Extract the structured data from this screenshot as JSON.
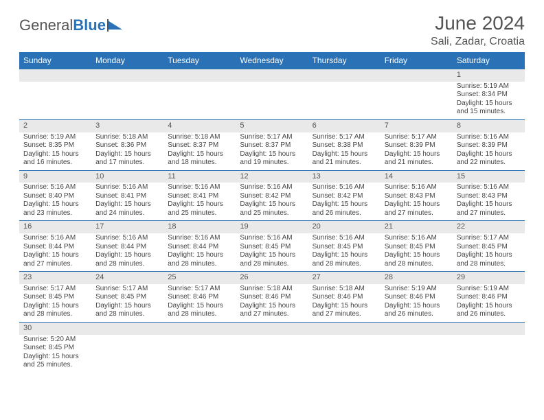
{
  "brand": {
    "part1": "General",
    "part2": "Blue"
  },
  "header": {
    "title": "June 2024",
    "location": "Sali, Zadar, Croatia"
  },
  "colors": {
    "header_bg": "#2a72b5",
    "header_fg": "#ffffff",
    "daynum_bg": "#e9e9e9",
    "rule": "#2a72b5",
    "text": "#444444",
    "title": "#555555"
  },
  "weekdays": [
    "Sunday",
    "Monday",
    "Tuesday",
    "Wednesday",
    "Thursday",
    "Friday",
    "Saturday"
  ],
  "first_weekday_index": 6,
  "days": [
    {
      "n": 1,
      "sunrise": "5:19 AM",
      "sunset": "8:34 PM",
      "daylight": "15 hours and 15 minutes."
    },
    {
      "n": 2,
      "sunrise": "5:19 AM",
      "sunset": "8:35 PM",
      "daylight": "15 hours and 16 minutes."
    },
    {
      "n": 3,
      "sunrise": "5:18 AM",
      "sunset": "8:36 PM",
      "daylight": "15 hours and 17 minutes."
    },
    {
      "n": 4,
      "sunrise": "5:18 AM",
      "sunset": "8:37 PM",
      "daylight": "15 hours and 18 minutes."
    },
    {
      "n": 5,
      "sunrise": "5:17 AM",
      "sunset": "8:37 PM",
      "daylight": "15 hours and 19 minutes."
    },
    {
      "n": 6,
      "sunrise": "5:17 AM",
      "sunset": "8:38 PM",
      "daylight": "15 hours and 21 minutes."
    },
    {
      "n": 7,
      "sunrise": "5:17 AM",
      "sunset": "8:39 PM",
      "daylight": "15 hours and 21 minutes."
    },
    {
      "n": 8,
      "sunrise": "5:16 AM",
      "sunset": "8:39 PM",
      "daylight": "15 hours and 22 minutes."
    },
    {
      "n": 9,
      "sunrise": "5:16 AM",
      "sunset": "8:40 PM",
      "daylight": "15 hours and 23 minutes."
    },
    {
      "n": 10,
      "sunrise": "5:16 AM",
      "sunset": "8:41 PM",
      "daylight": "15 hours and 24 minutes."
    },
    {
      "n": 11,
      "sunrise": "5:16 AM",
      "sunset": "8:41 PM",
      "daylight": "15 hours and 25 minutes."
    },
    {
      "n": 12,
      "sunrise": "5:16 AM",
      "sunset": "8:42 PM",
      "daylight": "15 hours and 25 minutes."
    },
    {
      "n": 13,
      "sunrise": "5:16 AM",
      "sunset": "8:42 PM",
      "daylight": "15 hours and 26 minutes."
    },
    {
      "n": 14,
      "sunrise": "5:16 AM",
      "sunset": "8:43 PM",
      "daylight": "15 hours and 27 minutes."
    },
    {
      "n": 15,
      "sunrise": "5:16 AM",
      "sunset": "8:43 PM",
      "daylight": "15 hours and 27 minutes."
    },
    {
      "n": 16,
      "sunrise": "5:16 AM",
      "sunset": "8:44 PM",
      "daylight": "15 hours and 27 minutes."
    },
    {
      "n": 17,
      "sunrise": "5:16 AM",
      "sunset": "8:44 PM",
      "daylight": "15 hours and 28 minutes."
    },
    {
      "n": 18,
      "sunrise": "5:16 AM",
      "sunset": "8:44 PM",
      "daylight": "15 hours and 28 minutes."
    },
    {
      "n": 19,
      "sunrise": "5:16 AM",
      "sunset": "8:45 PM",
      "daylight": "15 hours and 28 minutes."
    },
    {
      "n": 20,
      "sunrise": "5:16 AM",
      "sunset": "8:45 PM",
      "daylight": "15 hours and 28 minutes."
    },
    {
      "n": 21,
      "sunrise": "5:16 AM",
      "sunset": "8:45 PM",
      "daylight": "15 hours and 28 minutes."
    },
    {
      "n": 22,
      "sunrise": "5:17 AM",
      "sunset": "8:45 PM",
      "daylight": "15 hours and 28 minutes."
    },
    {
      "n": 23,
      "sunrise": "5:17 AM",
      "sunset": "8:45 PM",
      "daylight": "15 hours and 28 minutes."
    },
    {
      "n": 24,
      "sunrise": "5:17 AM",
      "sunset": "8:45 PM",
      "daylight": "15 hours and 28 minutes."
    },
    {
      "n": 25,
      "sunrise": "5:17 AM",
      "sunset": "8:46 PM",
      "daylight": "15 hours and 28 minutes."
    },
    {
      "n": 26,
      "sunrise": "5:18 AM",
      "sunset": "8:46 PM",
      "daylight": "15 hours and 27 minutes."
    },
    {
      "n": 27,
      "sunrise": "5:18 AM",
      "sunset": "8:46 PM",
      "daylight": "15 hours and 27 minutes."
    },
    {
      "n": 28,
      "sunrise": "5:19 AM",
      "sunset": "8:46 PM",
      "daylight": "15 hours and 26 minutes."
    },
    {
      "n": 29,
      "sunrise": "5:19 AM",
      "sunset": "8:46 PM",
      "daylight": "15 hours and 26 minutes."
    },
    {
      "n": 30,
      "sunrise": "5:20 AM",
      "sunset": "8:45 PM",
      "daylight": "15 hours and 25 minutes."
    }
  ],
  "labels": {
    "sunrise": "Sunrise:",
    "sunset": "Sunset:",
    "daylight": "Daylight:"
  }
}
